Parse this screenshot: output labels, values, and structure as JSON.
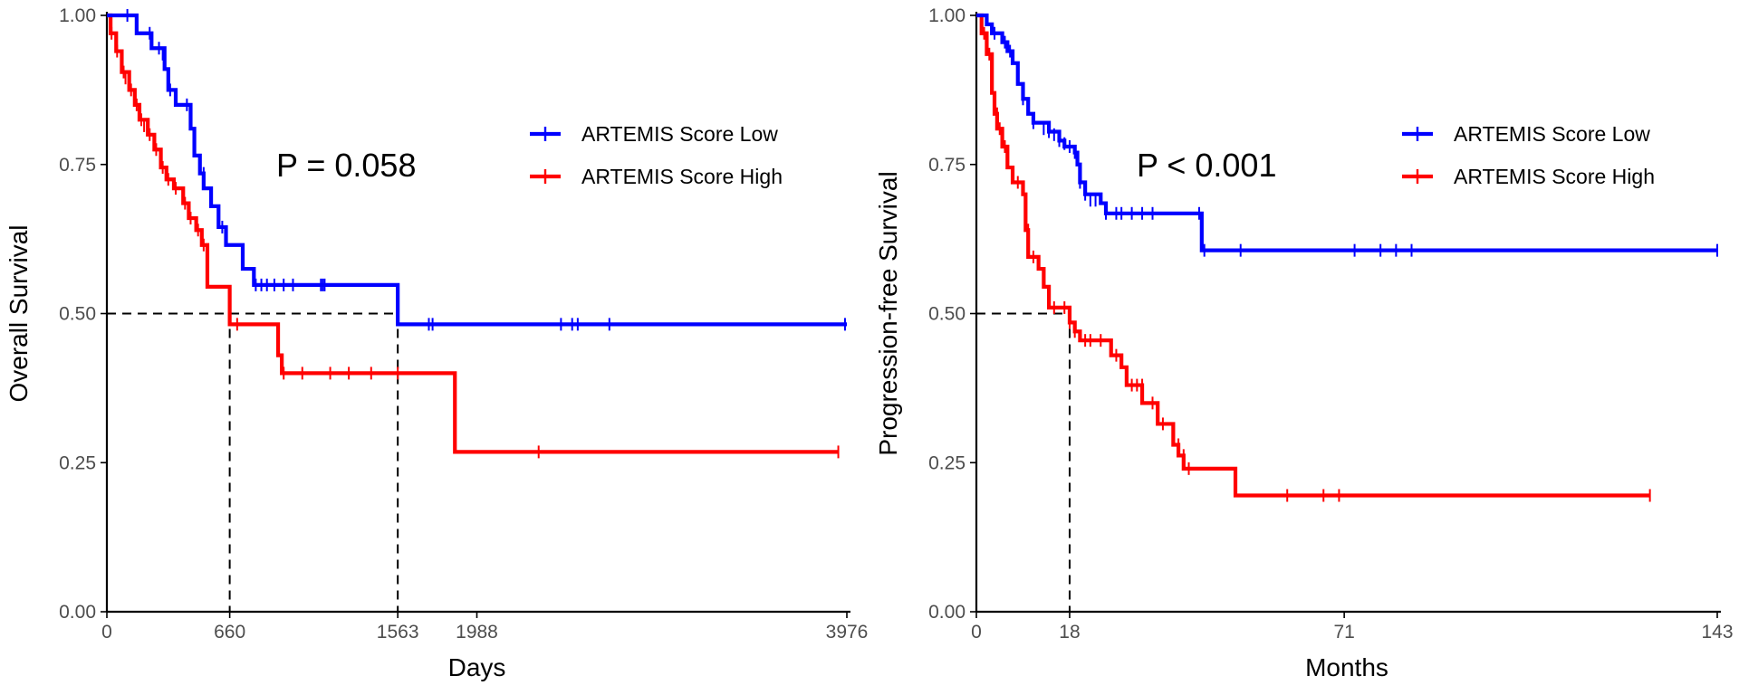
{
  "chart_data": [
    {
      "type": "line",
      "subtype": "kaplan-meier",
      "title": "",
      "xlabel": "Days",
      "ylabel": "Overall Survival",
      "xlim": [
        0,
        3976
      ],
      "ylim": [
        0,
        1
      ],
      "x_ticks": [
        0,
        660,
        1563,
        1988,
        3976
      ],
      "x_tick_labels": [
        "0",
        "660",
        "1563",
        "1988",
        "3976"
      ],
      "y_ticks": [
        0,
        0.25,
        0.5,
        0.75,
        1.0
      ],
      "y_tick_labels": [
        "0.00",
        "0.25",
        "0.50",
        "0.75",
        "1.00"
      ],
      "annotation": "P = 0.058",
      "legend_position": "top-right",
      "grid": false,
      "median_guides": [
        660,
        1563
      ],
      "series": [
        {
          "name": "ARTEMIS Score Low",
          "color": "#0000ff",
          "steps": [
            [
              0,
              1.0
            ],
            [
              160,
              0.97
            ],
            [
              240,
              0.945
            ],
            [
              310,
              0.91
            ],
            [
              330,
              0.875
            ],
            [
              370,
              0.85
            ],
            [
              450,
              0.81
            ],
            [
              470,
              0.765
            ],
            [
              500,
              0.735
            ],
            [
              520,
              0.71
            ],
            [
              560,
              0.68
            ],
            [
              600,
              0.645
            ],
            [
              640,
              0.615
            ],
            [
              730,
              0.575
            ],
            [
              790,
              0.548
            ],
            [
              1563,
              0.548
            ],
            [
              1563,
              0.482
            ],
            [
              3976,
              0.482
            ]
          ],
          "censored": [
            [
              110,
              1.0
            ],
            [
              230,
              0.97
            ],
            [
              280,
              0.945
            ],
            [
              300,
              0.935
            ],
            [
              340,
              0.875
            ],
            [
              430,
              0.85
            ],
            [
              520,
              0.735
            ],
            [
              620,
              0.645
            ],
            [
              800,
              0.548
            ],
            [
              830,
              0.548
            ],
            [
              860,
              0.548
            ],
            [
              900,
              0.548
            ],
            [
              950,
              0.548
            ],
            [
              1000,
              0.548
            ],
            [
              1150,
              0.548
            ],
            [
              1160,
              0.548
            ],
            [
              1170,
              0.548
            ],
            [
              1730,
              0.482
            ],
            [
              1750,
              0.482
            ],
            [
              2440,
              0.482
            ],
            [
              2500,
              0.482
            ],
            [
              2530,
              0.482
            ],
            [
              2700,
              0.482
            ],
            [
              3966,
              0.482
            ]
          ]
        },
        {
          "name": "ARTEMIS Score High",
          "color": "#ff0000",
          "steps": [
            [
              0,
              1.0
            ],
            [
              20,
              0.97
            ],
            [
              50,
              0.94
            ],
            [
              80,
              0.905
            ],
            [
              120,
              0.875
            ],
            [
              150,
              0.85
            ],
            [
              175,
              0.825
            ],
            [
              220,
              0.8
            ],
            [
              255,
              0.775
            ],
            [
              290,
              0.745
            ],
            [
              320,
              0.725
            ],
            [
              360,
              0.71
            ],
            [
              410,
              0.685
            ],
            [
              440,
              0.66
            ],
            [
              480,
              0.64
            ],
            [
              510,
              0.615
            ],
            [
              540,
              0.545
            ],
            [
              640,
              0.545
            ],
            [
              660,
              0.482
            ],
            [
              900,
              0.482
            ],
            [
              920,
              0.43
            ],
            [
              940,
              0.4
            ],
            [
              1870,
              0.4
            ],
            [
              1870,
              0.268
            ],
            [
              3930,
              0.268
            ]
          ],
          "censored": [
            [
              25,
              0.97
            ],
            [
              55,
              0.94
            ],
            [
              90,
              0.905
            ],
            [
              100,
              0.895
            ],
            [
              130,
              0.875
            ],
            [
              160,
              0.85
            ],
            [
              185,
              0.825
            ],
            [
              200,
              0.815
            ],
            [
              230,
              0.8
            ],
            [
              265,
              0.775
            ],
            [
              300,
              0.745
            ],
            [
              330,
              0.725
            ],
            [
              370,
              0.71
            ],
            [
              420,
              0.685
            ],
            [
              450,
              0.66
            ],
            [
              490,
              0.64
            ],
            [
              520,
              0.615
            ],
            [
              700,
              0.482
            ],
            [
              950,
              0.4
            ],
            [
              1050,
              0.4
            ],
            [
              1200,
              0.4
            ],
            [
              1300,
              0.4
            ],
            [
              1420,
              0.4
            ],
            [
              1563,
              0.4
            ],
            [
              2320,
              0.268
            ],
            [
              3930,
              0.268
            ]
          ]
        }
      ]
    },
    {
      "type": "line",
      "subtype": "kaplan-meier",
      "title": "",
      "xlabel": "Months",
      "ylabel": "Progression-free Survival",
      "xlim": [
        0,
        143
      ],
      "ylim": [
        0,
        1
      ],
      "x_ticks": [
        0,
        18,
        71,
        143
      ],
      "x_tick_labels": [
        "0",
        "18",
        "71",
        "143"
      ],
      "y_ticks": [
        0,
        0.25,
        0.5,
        0.75,
        1.0
      ],
      "y_tick_labels": [
        "0.00",
        "0.25",
        "0.50",
        "0.75",
        "1.00"
      ],
      "annotation": "P < 0.001",
      "legend_position": "top-right",
      "grid": false,
      "median_guides": [
        18
      ],
      "series": [
        {
          "name": "ARTEMIS Score Low",
          "color": "#0000ff",
          "steps": [
            [
              0,
              1.0
            ],
            [
              2,
              0.985
            ],
            [
              3,
              0.97
            ],
            [
              5,
              0.955
            ],
            [
              6,
              0.94
            ],
            [
              7,
              0.92
            ],
            [
              8,
              0.885
            ],
            [
              9,
              0.86
            ],
            [
              10,
              0.835
            ],
            [
              11,
              0.82
            ],
            [
              14,
              0.805
            ],
            [
              16,
              0.79
            ],
            [
              17,
              0.78
            ],
            [
              19,
              0.77
            ],
            [
              19.5,
              0.75
            ],
            [
              20,
              0.72
            ],
            [
              21,
              0.7
            ],
            [
              24,
              0.685
            ],
            [
              25,
              0.668
            ],
            [
              43,
              0.668
            ],
            [
              43.5,
              0.606
            ],
            [
              143,
              0.606
            ]
          ],
          "censored": [
            [
              3.5,
              0.97
            ],
            [
              5.5,
              0.955
            ],
            [
              6.5,
              0.94
            ],
            [
              9,
              0.86
            ],
            [
              11,
              0.82
            ],
            [
              13,
              0.81
            ],
            [
              14,
              0.805
            ],
            [
              15,
              0.8
            ],
            [
              16,
              0.79
            ],
            [
              17,
              0.785
            ],
            [
              18,
              0.78
            ],
            [
              19,
              0.77
            ],
            [
              20,
              0.72
            ],
            [
              21,
              0.7
            ],
            [
              22,
              0.69
            ],
            [
              23,
              0.69
            ],
            [
              25,
              0.668
            ],
            [
              27,
              0.668
            ],
            [
              28,
              0.668
            ],
            [
              30,
              0.668
            ],
            [
              32,
              0.668
            ],
            [
              34,
              0.668
            ],
            [
              43,
              0.668
            ],
            [
              44,
              0.606
            ],
            [
              51,
              0.606
            ],
            [
              73,
              0.606
            ],
            [
              78,
              0.606
            ],
            [
              81,
              0.606
            ],
            [
              84,
              0.606
            ],
            [
              143,
              0.606
            ]
          ]
        },
        {
          "name": "ARTEMIS Score High",
          "color": "#ff0000",
          "steps": [
            [
              0,
              1.0
            ],
            [
              1,
              0.97
            ],
            [
              2,
              0.935
            ],
            [
              3,
              0.87
            ],
            [
              3.5,
              0.835
            ],
            [
              4,
              0.81
            ],
            [
              5,
              0.78
            ],
            [
              6,
              0.745
            ],
            [
              7,
              0.72
            ],
            [
              9,
              0.7
            ],
            [
              9.5,
              0.64
            ],
            [
              10,
              0.595
            ],
            [
              12,
              0.575
            ],
            [
              13,
              0.545
            ],
            [
              14,
              0.51
            ],
            [
              17,
              0.51
            ],
            [
              18,
              0.485
            ],
            [
              19,
              0.47
            ],
            [
              20,
              0.455
            ],
            [
              26,
              0.43
            ],
            [
              28,
              0.41
            ],
            [
              29,
              0.38
            ],
            [
              32,
              0.35
            ],
            [
              35,
              0.315
            ],
            [
              38,
              0.28
            ],
            [
              39,
              0.262
            ],
            [
              40,
              0.24
            ],
            [
              50,
              0.24
            ],
            [
              50,
              0.195
            ],
            [
              130,
              0.195
            ]
          ],
          "censored": [
            [
              1.5,
              0.97
            ],
            [
              2.5,
              0.935
            ],
            [
              4,
              0.835
            ],
            [
              4.5,
              0.81
            ],
            [
              5.5,
              0.78
            ],
            [
              8,
              0.72
            ],
            [
              10,
              0.64
            ],
            [
              11,
              0.595
            ],
            [
              15,
              0.51
            ],
            [
              17,
              0.51
            ],
            [
              18,
              0.485
            ],
            [
              19,
              0.47
            ],
            [
              21,
              0.455
            ],
            [
              22,
              0.455
            ],
            [
              24,
              0.455
            ],
            [
              27,
              0.43
            ],
            [
              30,
              0.38
            ],
            [
              31,
              0.38
            ],
            [
              32,
              0.38
            ],
            [
              34,
              0.35
            ],
            [
              36,
              0.315
            ],
            [
              39,
              0.28
            ],
            [
              40,
              0.262
            ],
            [
              41,
              0.24
            ],
            [
              60,
              0.195
            ],
            [
              67,
              0.195
            ],
            [
              70,
              0.195
            ],
            [
              130,
              0.195
            ]
          ]
        }
      ]
    }
  ]
}
